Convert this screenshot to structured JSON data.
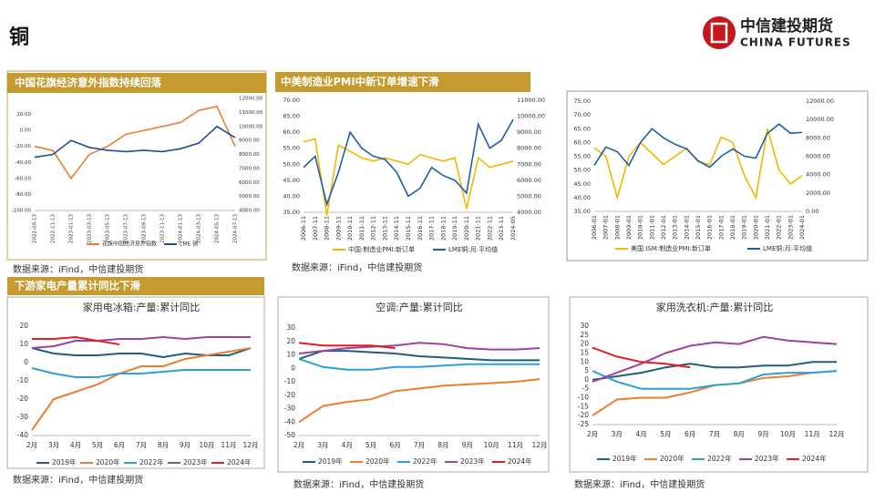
{
  "header": {
    "title": "铜",
    "logo_cn": "中信建投期货",
    "logo_en": "CHINA FUTURES"
  },
  "sections": [
    "中国花旗经济意外指数持续回落",
    "中美制造业PMI中新订单增速下滑",
    "下游家电产量累计同比下滑"
  ],
  "sources": [
    "数据来源：iFind，中信建投期货",
    "数据来源：iFind，中信建投期货",
    "数据来源：iFind，中信建投期货",
    "数据来源：iFind，中信建投期货",
    "数据来源：iFind，中信建投期货"
  ],
  "chart_data": [
    {
      "type": "line",
      "categories": [
        "2022-09-13",
        "2022-11-13",
        "2023-01-13",
        "2023-03-13",
        "2023-05-13",
        "2023-07-13",
        "2023-09-13",
        "2023-11-13",
        "2024-01-13",
        "2024-03-13",
        "2024-05-13",
        "2024-07-13"
      ],
      "series": [
        {
          "name": "花旗中国经济意外指数",
          "color": "#ed7d31",
          "values": [
            -20,
            -25,
            -60,
            -30,
            -20,
            -5,
            0,
            5,
            10,
            25,
            30,
            -20
          ]
        },
        {
          "name": "LME 铜",
          "color": "#1f4e9a",
          "axis": "y2",
          "values": [
            7800,
            8000,
            9000,
            8500,
            8300,
            8200,
            8300,
            8200,
            8400,
            8800,
            10000,
            9200
          ]
        }
      ],
      "ylim": [
        -100,
        40
      ],
      "yticks": [
        {
          "value": -100,
          "label": "-100.00"
        },
        {
          "value": -80,
          "label": "-80.00"
        },
        {
          "value": -60,
          "label": "-60.00"
        },
        {
          "value": -40,
          "label": "-40.00"
        },
        {
          "value": -20,
          "label": "-20.00"
        },
        {
          "value": 0,
          "label": "0.00"
        },
        {
          "value": 20,
          "label": "20.00"
        }
      ],
      "y2lim": [
        4000,
        12000
      ],
      "y2ticks": [
        {
          "value": 4000,
          "label": "4000.00"
        },
        {
          "value": 5000,
          "label": "5000.00"
        },
        {
          "value": 6000,
          "label": "6000.00"
        },
        {
          "value": 7000,
          "label": "7000.00"
        },
        {
          "value": 8000,
          "label": "8000.00"
        },
        {
          "value": 9000,
          "label": "9000.00"
        },
        {
          "value": 10000,
          "label": "10000.00"
        },
        {
          "value": 11000,
          "label": "11000.00"
        },
        {
          "value": 12000,
          "label": "12000.00"
        }
      ]
    },
    {
      "type": "line",
      "categories": [
        "2006-11",
        "2007-11",
        "2008-11",
        "2009-11",
        "2010-11",
        "2011-11",
        "2012-11",
        "2013-11",
        "2014-11",
        "2015-11",
        "2016-11",
        "2017-11",
        "2018-11",
        "2019-11",
        "2020-11",
        "2021-11",
        "2022-11",
        "2023-11",
        "2024-05"
      ],
      "series": [
        {
          "name": "中国:制造业PMI:新订单",
          "color": "#f5b800",
          "values": [
            57,
            58,
            34,
            56,
            54,
            52,
            51,
            52,
            51,
            50,
            53,
            52,
            51,
            52,
            36,
            52,
            49,
            50,
            51
          ]
        },
        {
          "name": "LME铜:月:平均值",
          "color": "#1f5fa8",
          "axis": "y2",
          "values": [
            6800,
            7500,
            4500,
            6500,
            9000,
            8000,
            7500,
            7300,
            6500,
            5000,
            5500,
            6800,
            6300,
            6000,
            5200,
            9500,
            8000,
            8500,
            9800
          ]
        }
      ],
      "ylim": [
        35,
        70
      ],
      "yticks": [
        {
          "value": 35,
          "label": "35.00"
        },
        {
          "value": 40,
          "label": "40.00"
        },
        {
          "value": 45,
          "label": "45.00"
        },
        {
          "value": 50,
          "label": "50.00"
        },
        {
          "value": 55,
          "label": "55.00"
        },
        {
          "value": 60,
          "label": "60.00"
        },
        {
          "value": 65,
          "label": "65.00"
        },
        {
          "value": 70,
          "label": "70.00"
        }
      ],
      "y2lim": [
        4000,
        11000
      ],
      "y2ticks": [
        {
          "value": 4000,
          "label": "4000.00"
        },
        {
          "value": 5000,
          "label": "5000.00"
        },
        {
          "value": 6000,
          "label": "6000.00"
        },
        {
          "value": 7000,
          "label": "7000.00"
        },
        {
          "value": 8000,
          "label": "8000.00"
        },
        {
          "value": 9000,
          "label": "9000.00"
        },
        {
          "value": 10000,
          "label": "10000.00"
        },
        {
          "value": 11000,
          "label": "11000.00"
        }
      ]
    },
    {
      "type": "line",
      "categories": [
        "2006-01",
        "2007-01",
        "2008-01",
        "2009-01",
        "2010-01",
        "2011-01",
        "2012-01",
        "2013-01",
        "2014-01",
        "2015-01",
        "2016-01",
        "2017-01",
        "2018-01",
        "2019-01",
        "2020-01",
        "2021-01",
        "2022-01",
        "2023-01",
        "2024-01"
      ],
      "series": [
        {
          "name": "美国:ISM:制造业PMI:新订单",
          "color": "#f5b800",
          "values": [
            58,
            55,
            40,
            55,
            60,
            56,
            52,
            55,
            58,
            53,
            52,
            62,
            60,
            48,
            40,
            65,
            50,
            45,
            48
          ]
        },
        {
          "name": "LME铜:月:平均值",
          "color": "#1f5fa8",
          "axis": "y2",
          "values": [
            5000,
            7000,
            6500,
            5000,
            7500,
            9000,
            8000,
            7300,
            6800,
            5500,
            4800,
            6000,
            6800,
            6000,
            5800,
            8500,
            9500,
            8500,
            8600
          ]
        }
      ],
      "ylim": [
        35,
        75
      ],
      "yticks": [
        {
          "value": 35,
          "label": "35.00"
        },
        {
          "value": 40,
          "label": "40.00"
        },
        {
          "value": 45,
          "label": "45.00"
        },
        {
          "value": 50,
          "label": "50.00"
        },
        {
          "value": 55,
          "label": "55.00"
        },
        {
          "value": 60,
          "label": "60.00"
        },
        {
          "value": 65,
          "label": "65.00"
        },
        {
          "value": 70,
          "label": "70.00"
        },
        {
          "value": 75,
          "label": "75.00"
        }
      ],
      "y2lim": [
        0,
        12000
      ],
      "y2ticks": [
        {
          "value": 0,
          "label": "0.00"
        },
        {
          "value": 2000,
          "label": "2000.00"
        },
        {
          "value": 4000,
          "label": "4000.00"
        },
        {
          "value": 6000,
          "label": "6000.00"
        },
        {
          "value": 8000,
          "label": "8000.00"
        },
        {
          "value": 10000,
          "label": "10000.00"
        },
        {
          "value": 12000,
          "label": "12000.00"
        }
      ]
    },
    {
      "type": "line",
      "title": "家用电冰箱:产量:累计同比",
      "categories": [
        "2月",
        "3月",
        "4月",
        "5月",
        "6月",
        "7月",
        "8月",
        "9月",
        "10月",
        "11月",
        "12月"
      ],
      "series": [
        {
          "name": "2019年",
          "color": "#1f5f7a",
          "values": [
            8,
            5,
            4,
            4,
            5,
            5,
            3,
            5,
            4,
            4,
            8
          ]
        },
        {
          "name": "2020年",
          "color": "#ed7d31",
          "values": [
            -37,
            -20,
            -16,
            -12,
            -6,
            -2,
            -2,
            2,
            4,
            6,
            8
          ]
        },
        {
          "name": "2022年",
          "color": "#2e9fd8",
          "values": [
            -3,
            -6,
            -8,
            -8,
            -6,
            -6,
            -5,
            -4,
            -4,
            -4,
            -4
          ]
        },
        {
          "name": "2023年",
          "color": "#a040a0",
          "values": [
            8,
            9,
            12,
            12,
            13,
            13,
            14,
            13,
            14,
            14,
            14
          ]
        },
        {
          "name": "2024年",
          "color": "#e02020",
          "values": [
            13,
            13,
            14,
            12,
            10,
            null,
            null,
            null,
            null,
            null,
            null
          ]
        }
      ],
      "ylim": [
        -40,
        20
      ],
      "yticks": [
        -40,
        -30,
        -20,
        -10,
        0,
        10,
        20
      ]
    },
    {
      "type": "line",
      "title": "空调:产量:累计同比",
      "categories": [
        "2月",
        "3月",
        "4月",
        "5月",
        "6月",
        "7月",
        "8月",
        "9月",
        "10月",
        "11月",
        "12月"
      ],
      "series": [
        {
          "name": "2019年",
          "color": "#1f5f7a",
          "values": [
            7,
            13,
            13,
            12,
            11,
            9,
            8,
            7,
            6,
            6,
            6
          ]
        },
        {
          "name": "2020年",
          "color": "#ed7d31",
          "values": [
            -40,
            -28,
            -25,
            -23,
            -17,
            -15,
            -13,
            -12,
            -11,
            -10,
            -8
          ]
        },
        {
          "name": "2022年",
          "color": "#2e9fd8",
          "values": [
            7,
            1,
            -1,
            -1,
            1,
            1,
            2,
            3,
            3,
            3,
            3
          ]
        },
        {
          "name": "2023年",
          "color": "#a040a0",
          "values": [
            11,
            13,
            15,
            16,
            17,
            19,
            18,
            15,
            14,
            14,
            15
          ]
        },
        {
          "name": "2024年",
          "color": "#e02020",
          "values": [
            19,
            17,
            17,
            17,
            15,
            null,
            null,
            null,
            null,
            null,
            null
          ]
        }
      ],
      "ylim": [
        -50,
        30
      ],
      "yticks": [
        -50,
        -40,
        -30,
        -20,
        -10,
        0,
        10,
        20,
        30
      ]
    },
    {
      "type": "line",
      "title": "家用洗衣机:产量:累计同比",
      "categories": [
        "2月",
        "3月",
        "4月",
        "5月",
        "6月",
        "7月",
        "8月",
        "9月",
        "10月",
        "11月",
        "12月"
      ],
      "series": [
        {
          "name": "2019年",
          "color": "#1f5f7a",
          "values": [
            0,
            2,
            4,
            7,
            9,
            7,
            7,
            8,
            8,
            10,
            10
          ]
        },
        {
          "name": "2020年",
          "color": "#ed7d31",
          "values": [
            -20,
            -11,
            -10,
            -10,
            -7,
            -3,
            -2,
            1,
            2,
            4,
            5
          ]
        },
        {
          "name": "2022年",
          "color": "#2e9fd8",
          "values": [
            5,
            -1,
            -5,
            -5,
            -5,
            -3,
            -2,
            3,
            4,
            4,
            5
          ]
        },
        {
          "name": "2023年",
          "color": "#a040a0",
          "values": [
            -1,
            4,
            9,
            15,
            19,
            21,
            20,
            24,
            22,
            21,
            20
          ]
        },
        {
          "name": "2024年",
          "color": "#e02020",
          "values": [
            18,
            13,
            10,
            9,
            7,
            null,
            null,
            null,
            null,
            null,
            null
          ]
        }
      ],
      "ylim": [
        -25,
        30
      ],
      "yticks": [
        -25,
        -20,
        -15,
        -10,
        -5,
        0,
        5,
        10,
        15,
        20,
        25,
        30
      ]
    }
  ]
}
